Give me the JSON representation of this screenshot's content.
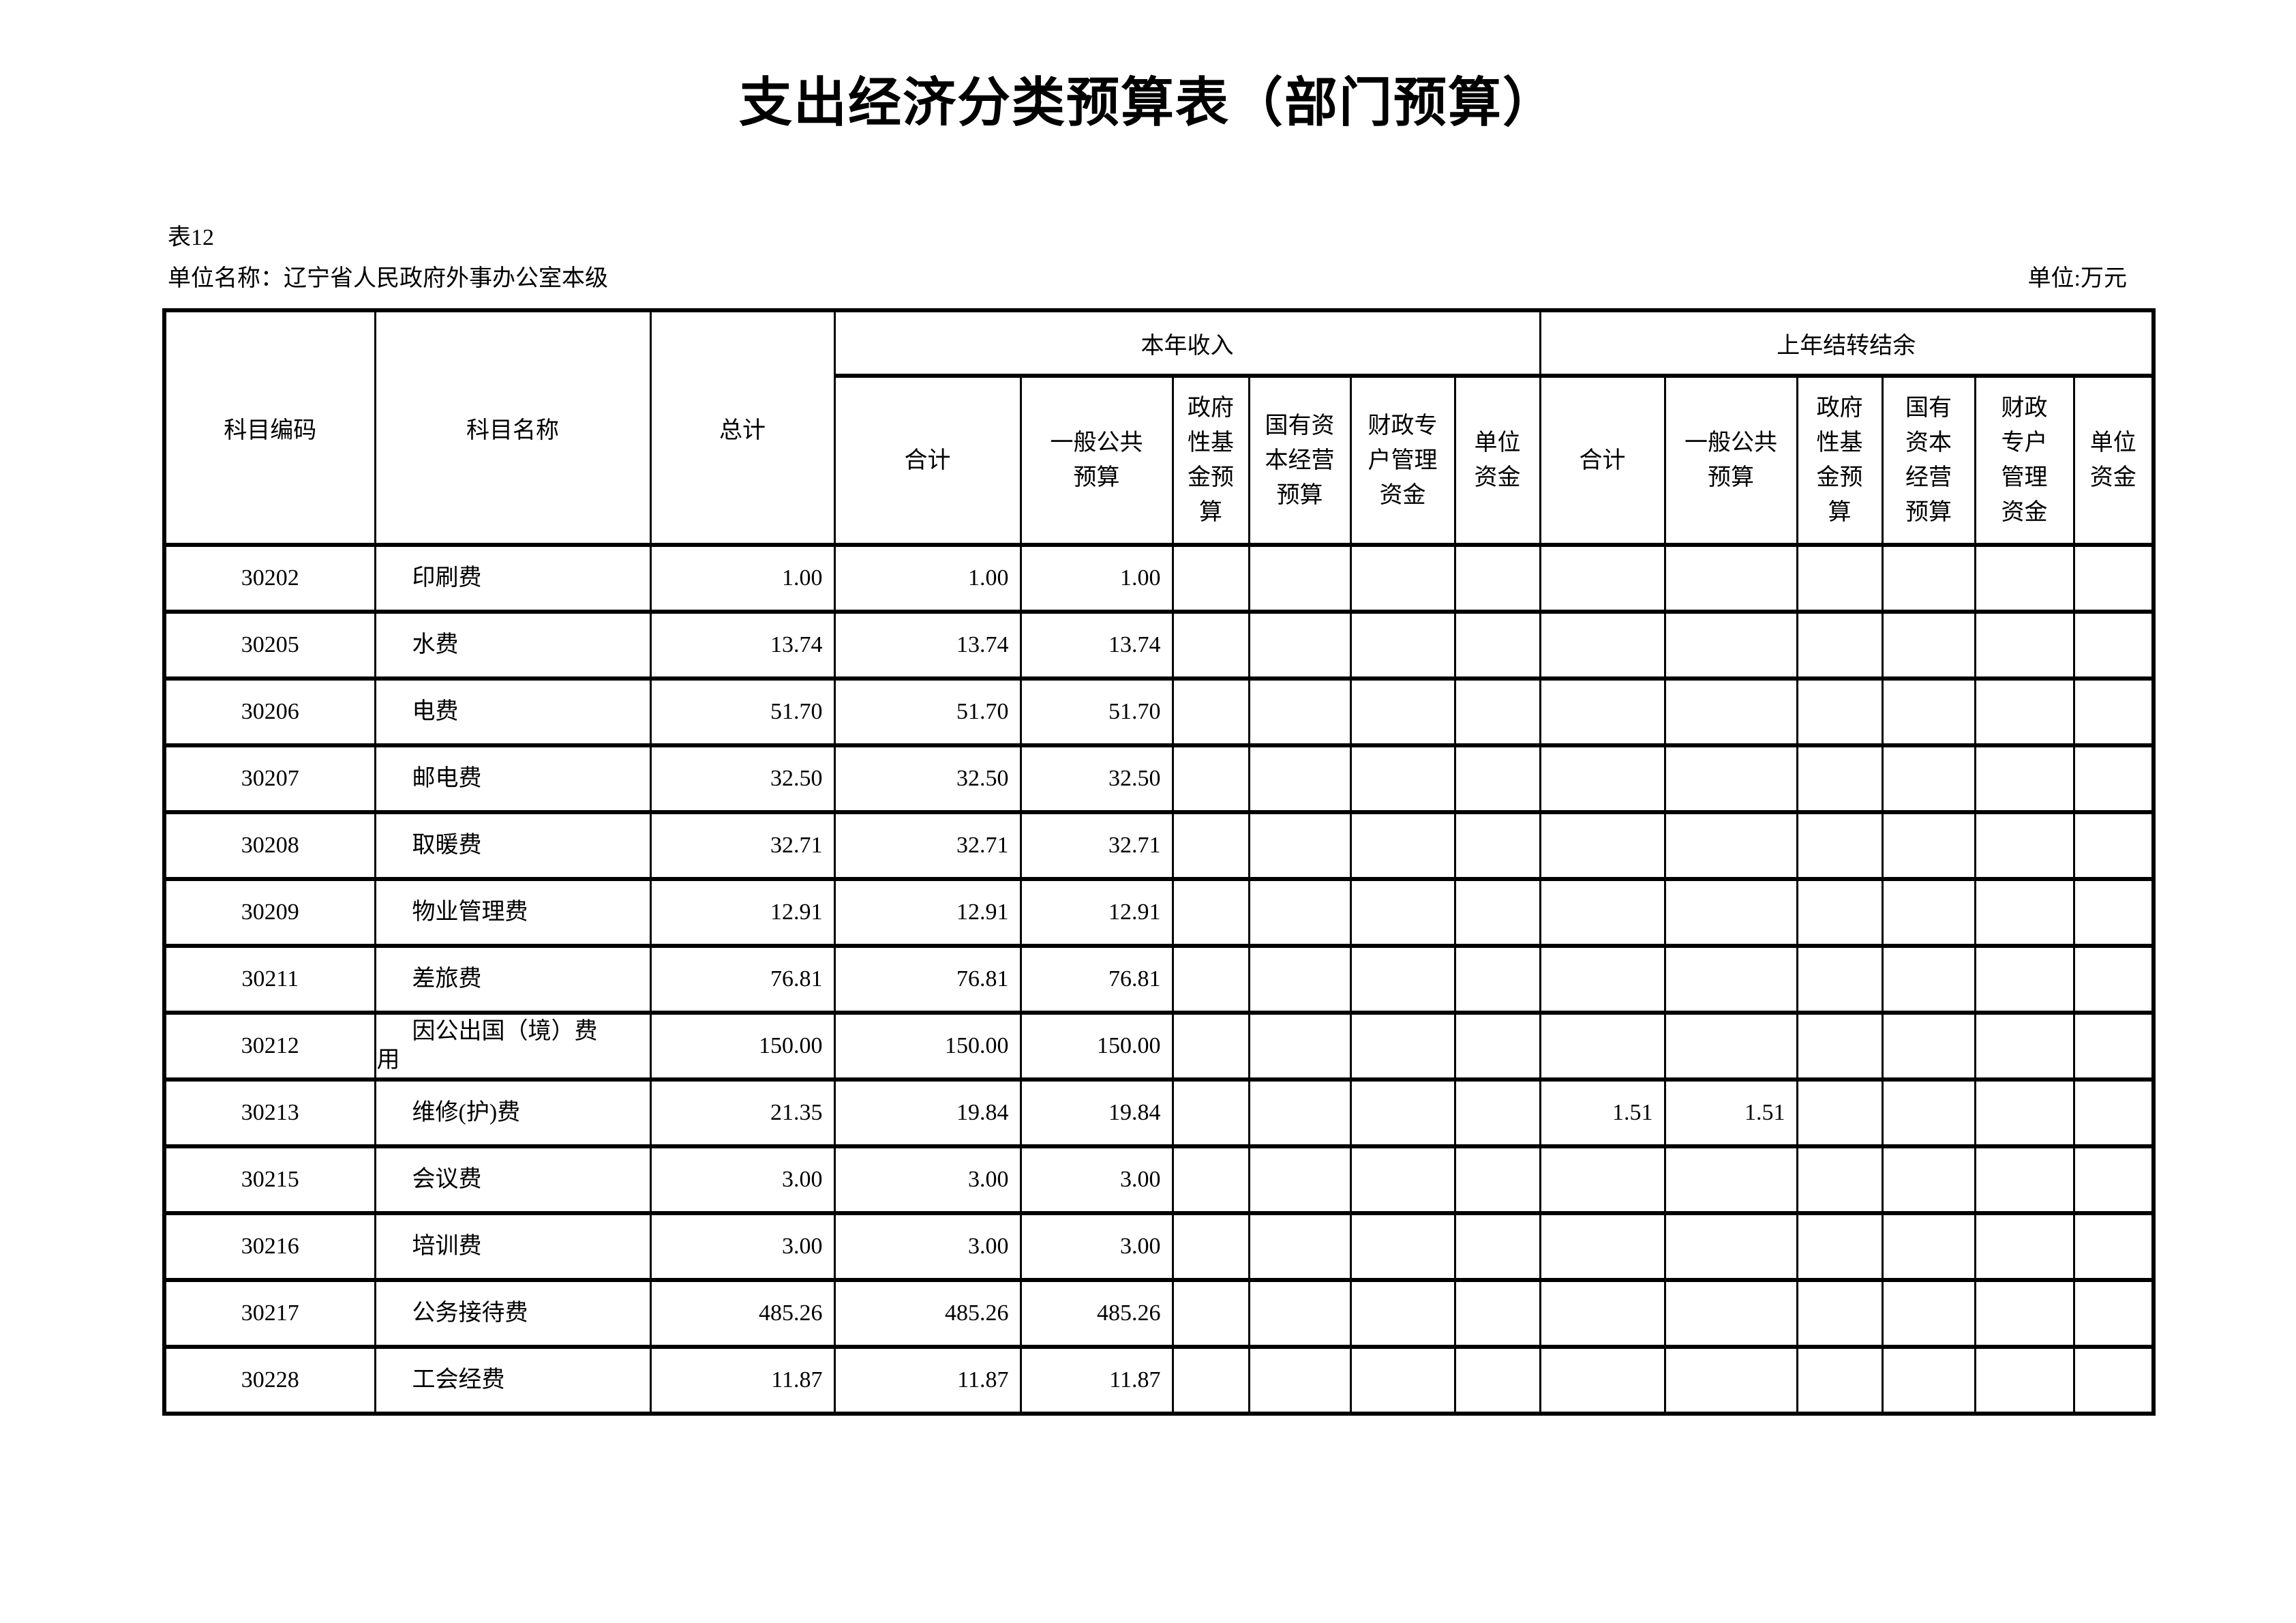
{
  "page": {
    "title": "支出经济分类预算表（部门预算）",
    "table_no": "表12",
    "unit_name": "单位名称：辽宁省人民政府外事办公室本级",
    "unit_of_measure": "单位:万元"
  },
  "table": {
    "header": {
      "subject_code": "科目编码",
      "subject_name": "科目名称",
      "grand_total": "总计",
      "current_year_income": "本年收入",
      "prev_year_carryover": "上年结转结余",
      "current_year_sub_columns": [
        "合计",
        "一般公共\n预算",
        "政府\n性基\n金预\n算",
        "国有资\n本经营\n预算",
        "财政专\n户管理\n资金",
        "单位\n资金"
      ],
      "carryover_sub_columns": [
        "合计",
        "一般公共\n预算",
        "政府\n性基\n金预\n算",
        "国有\n资本\n经营\n预算",
        "财政\n专户\n管理\n资金",
        "单位\n资金"
      ]
    },
    "rows": [
      {
        "code": "30202",
        "name": "印刷费",
        "total": "1.00",
        "current_year": [
          "1.00",
          "1.00",
          "",
          "",
          "",
          ""
        ],
        "carryover": [
          "",
          "",
          "",
          "",
          "",
          ""
        ]
      },
      {
        "code": "30205",
        "name": "水费",
        "total": "13.74",
        "current_year": [
          "13.74",
          "13.74",
          "",
          "",
          "",
          ""
        ],
        "carryover": [
          "",
          "",
          "",
          "",
          "",
          ""
        ]
      },
      {
        "code": "30206",
        "name": "电费",
        "total": "51.70",
        "current_year": [
          "51.70",
          "51.70",
          "",
          "",
          "",
          ""
        ],
        "carryover": [
          "",
          "",
          "",
          "",
          "",
          ""
        ]
      },
      {
        "code": "30207",
        "name": "邮电费",
        "total": "32.50",
        "current_year": [
          "32.50",
          "32.50",
          "",
          "",
          "",
          ""
        ],
        "carryover": [
          "",
          "",
          "",
          "",
          "",
          ""
        ]
      },
      {
        "code": "30208",
        "name": "取暖费",
        "total": "32.71",
        "current_year": [
          "32.71",
          "32.71",
          "",
          "",
          "",
          ""
        ],
        "carryover": [
          "",
          "",
          "",
          "",
          "",
          ""
        ]
      },
      {
        "code": "30209",
        "name": "物业管理费",
        "total": "12.91",
        "current_year": [
          "12.91",
          "12.91",
          "",
          "",
          "",
          ""
        ],
        "carryover": [
          "",
          "",
          "",
          "",
          "",
          ""
        ]
      },
      {
        "code": "30211",
        "name": "差旅费",
        "total": "76.81",
        "current_year": [
          "76.81",
          "76.81",
          "",
          "",
          "",
          ""
        ],
        "carryover": [
          "",
          "",
          "",
          "",
          "",
          ""
        ]
      },
      {
        "code": "30212",
        "name": "因公出国（境）费用",
        "total": "150.00",
        "current_year": [
          "150.00",
          "150.00",
          "",
          "",
          "",
          ""
        ],
        "carryover": [
          "",
          "",
          "",
          "",
          "",
          ""
        ]
      },
      {
        "code": "30213",
        "name": "维修(护)费",
        "total": "21.35",
        "current_year": [
          "19.84",
          "19.84",
          "",
          "",
          "",
          ""
        ],
        "carryover": [
          "1.51",
          "1.51",
          "",
          "",
          "",
          ""
        ]
      },
      {
        "code": "30215",
        "name": "会议费",
        "total": "3.00",
        "current_year": [
          "3.00",
          "3.00",
          "",
          "",
          "",
          ""
        ],
        "carryover": [
          "",
          "",
          "",
          "",
          "",
          ""
        ]
      },
      {
        "code": "30216",
        "name": "培训费",
        "total": "3.00",
        "current_year": [
          "3.00",
          "3.00",
          "",
          "",
          "",
          ""
        ],
        "carryover": [
          "",
          "",
          "",
          "",
          "",
          ""
        ]
      },
      {
        "code": "30217",
        "name": "公务接待费",
        "total": "485.26",
        "current_year": [
          "485.26",
          "485.26",
          "",
          "",
          "",
          ""
        ],
        "carryover": [
          "",
          "",
          "",
          "",
          "",
          ""
        ]
      },
      {
        "code": "30228",
        "name": "工会经费",
        "total": "11.87",
        "current_year": [
          "11.87",
          "11.87",
          "",
          "",
          "",
          ""
        ],
        "carryover": [
          "",
          "",
          "",
          "",
          "",
          ""
        ]
      }
    ]
  }
}
